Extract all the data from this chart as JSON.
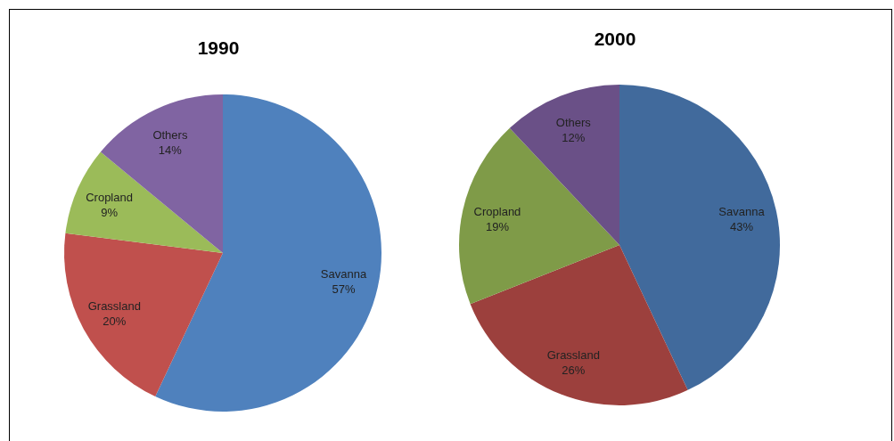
{
  "chart_data": [
    {
      "type": "pie",
      "title": "1990",
      "categories": [
        "Savanna",
        "Grassland",
        "Cropland",
        "Others"
      ],
      "values": [
        57,
        20,
        9,
        14
      ],
      "colors": [
        "#4f81bd",
        "#c0504d",
        "#9bbb59",
        "#8064a2"
      ],
      "value_labels": [
        "57%",
        "20%",
        "9%",
        "14%"
      ]
    },
    {
      "type": "pie",
      "title": "2000",
      "categories": [
        "Savanna",
        "Grassland",
        "Cropland",
        "Others"
      ],
      "values": [
        43,
        26,
        19,
        12
      ],
      "colors": [
        "#416a9c",
        "#9c403d",
        "#7f9b48",
        "#6a5087"
      ],
      "value_labels": [
        "43%",
        "26%",
        "19%",
        "12%"
      ]
    }
  ]
}
